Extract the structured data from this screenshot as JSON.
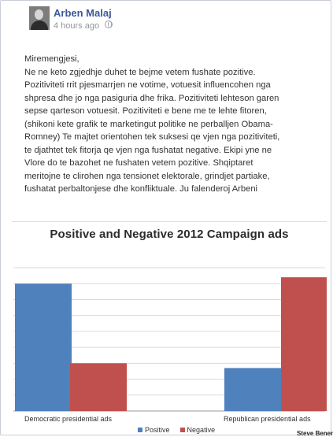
{
  "post": {
    "author": "Arben Malaj",
    "timestamp": "4 hours ago",
    "text_lines": [
      "Miremengjesi,",
      "Ne ne keto zgjedhje duhet te bejme vetem fushate pozitive.",
      "Pozitiviteti rrit pjesmarrjen ne votime, votuesit influencohen nga",
      "shpresa dhe jo nga pasiguria dhe frika. Pozitiviteti lehteson garen",
      "sepse qarteson votuesit. Pozitiviteti e bene me te lehte fitoren,",
      "(shikoni kete grafik te marketingut politike ne perballjen Obama-",
      "Romney) Te majtet orientohen tek suksesi qe vjen nga pozitiviteti,",
      "te djathtet tek fitorja qe vjen nga fushatat negative. Ekipi yne ne",
      "Vlore do te bazohet ne fushaten vetem pozitive. Shqiptaret",
      "meritojne te clirohen nga tensionet elektorale, grindjet partiake,",
      "fushatat perbaltonjese dhe konfliktuale. Ju falenderoj Arbeni"
    ]
  },
  "chart_data": {
    "type": "bar",
    "title": "Positive and Negative 2012 Campaign ads",
    "categories": [
      "Democratic presidential ads",
      "Republican presidential ads"
    ],
    "series": [
      {
        "name": "Positive",
        "values": [
          80,
          27
        ],
        "color": "#4f81bd"
      },
      {
        "name": "Negative",
        "values": [
          30,
          84
        ],
        "color": "#c0504d"
      }
    ],
    "ylim": [
      0,
      90
    ],
    "grid": true,
    "legend": "bottom",
    "credit": "Steve Benen"
  }
}
